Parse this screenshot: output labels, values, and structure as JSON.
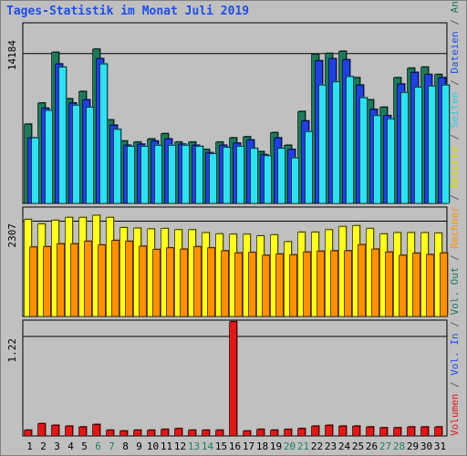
{
  "title": "Tages-Statistik im Monat Juli 2019",
  "chart_data": [
    {
      "type": "bar",
      "panel": "top",
      "ytick_label": "14184",
      "ytick_value": 14184,
      "ylim": [
        0,
        17100
      ],
      "categories": [
        "1",
        "2",
        "3",
        "4",
        "5",
        "6",
        "7",
        "8",
        "9",
        "10",
        "11",
        "12",
        "13",
        "14",
        "15",
        "16",
        "17",
        "18",
        "19",
        "20",
        "21",
        "22",
        "23",
        "24",
        "25",
        "26",
        "27",
        "28",
        "29",
        "30",
        "31"
      ],
      "weekend_days": [
        "6",
        "7",
        "13",
        "14",
        "20",
        "21",
        "27",
        "28"
      ],
      "series": [
        {
          "name": "Anfragen",
          "color": "#1e7a5a",
          "values": [
            7500,
            9500,
            14300,
            9900,
            10600,
            14600,
            7900,
            5900,
            5800,
            6100,
            6600,
            5800,
            5800,
            5100,
            5800,
            6200,
            6300,
            4900,
            6700,
            5500,
            8700,
            14100,
            14200,
            14400,
            11900,
            9800,
            9100,
            11900,
            12800,
            12900,
            12200
          ]
        },
        {
          "name": "Dateien",
          "color": "#2040e0",
          "values": [
            6200,
            9000,
            13200,
            9500,
            9800,
            13700,
            7400,
            5500,
            5600,
            5900,
            6100,
            5600,
            5500,
            4800,
            5500,
            5700,
            6000,
            4600,
            6200,
            5100,
            7800,
            13500,
            13700,
            13600,
            11200,
            8900,
            8300,
            11300,
            12400,
            12200,
            11900
          ]
        },
        {
          "name": "Seiten",
          "color": "#30e0f0",
          "values": [
            6200,
            8800,
            12900,
            9300,
            9100,
            13200,
            7000,
            5400,
            5400,
            5500,
            5500,
            5500,
            5400,
            4700,
            5300,
            5400,
            5200,
            4500,
            5200,
            4300,
            6800,
            11200,
            11500,
            12000,
            10000,
            8300,
            8000,
            10500,
            11000,
            11100,
            11200
          ]
        }
      ]
    },
    {
      "type": "bar",
      "panel": "middle",
      "ytick_label": "2307",
      "ytick_value": 2307,
      "ylim": [
        0,
        2650
      ],
      "categories": [
        "1",
        "2",
        "3",
        "4",
        "5",
        "6",
        "7",
        "8",
        "9",
        "10",
        "11",
        "12",
        "13",
        "14",
        "15",
        "16",
        "17",
        "18",
        "19",
        "20",
        "21",
        "22",
        "23",
        "24",
        "25",
        "26",
        "27",
        "28",
        "29",
        "30",
        "31"
      ],
      "series": [
        {
          "name": "Besuche",
          "color": "#ffff20",
          "values": [
            2350,
            2240,
            2330,
            2400,
            2400,
            2450,
            2400,
            2150,
            2140,
            2120,
            2130,
            2100,
            2100,
            2030,
            2000,
            1990,
            1990,
            1950,
            1980,
            1810,
            2040,
            2040,
            2100,
            2180,
            2200,
            2130,
            2000,
            2030,
            2030,
            2030,
            2020
          ]
        },
        {
          "name": "Rechner",
          "color": "#ff9000",
          "values": [
            1680,
            1690,
            1760,
            1760,
            1820,
            1730,
            1840,
            1820,
            1700,
            1620,
            1660,
            1630,
            1690,
            1660,
            1590,
            1540,
            1550,
            1480,
            1510,
            1490,
            1560,
            1580,
            1590,
            1590,
            1740,
            1630,
            1560,
            1480,
            1530,
            1500,
            1540
          ]
        }
      ]
    },
    {
      "type": "bar",
      "panel": "bottom",
      "ytick_label": "1.22",
      "ytick_value": 1.22,
      "ylim": [
        0,
        1.42
      ],
      "categories": [
        "1",
        "2",
        "3",
        "4",
        "5",
        "6",
        "7",
        "8",
        "9",
        "10",
        "11",
        "12",
        "13",
        "14",
        "15",
        "16",
        "17",
        "18",
        "19",
        "20",
        "21",
        "22",
        "23",
        "24",
        "25",
        "26",
        "27",
        "28",
        "29",
        "30",
        "31"
      ],
      "series": [
        {
          "name": "Volumen",
          "color": "#e01818",
          "values": [
            0.07,
            0.15,
            0.13,
            0.12,
            0.11,
            0.14,
            0.07,
            0.06,
            0.07,
            0.07,
            0.08,
            0.09,
            0.07,
            0.07,
            0.07,
            1.4,
            0.06,
            0.08,
            0.07,
            0.08,
            0.09,
            0.12,
            0.13,
            0.12,
            0.12,
            0.11,
            0.1,
            0.1,
            0.11,
            0.11,
            0.11
          ]
        }
      ]
    }
  ],
  "legend": [
    {
      "label": "Volumen",
      "color": "#e01818"
    },
    {
      "label": " / ",
      "color": "#606060"
    },
    {
      "label": "Vol. In",
      "color": "#1e4ee6"
    },
    {
      "label": " / ",
      "color": "#606060"
    },
    {
      "label": "Vol. Out",
      "color": "#1e7a5a"
    },
    {
      "label": " / ",
      "color": "#606060"
    },
    {
      "label": "Rechner",
      "color": "#ff9000"
    },
    {
      "label": " / ",
      "color": "#606060"
    },
    {
      "label": "Besuche",
      "color": "#dcdc00"
    },
    {
      "label": " / ",
      "color": "#606060"
    },
    {
      "label": "Seiten",
      "color": "#30c8e0"
    },
    {
      "label": " / ",
      "color": "#606060"
    },
    {
      "label": "Dateien",
      "color": "#1e4ee6"
    },
    {
      "label": " / ",
      "color": "#606060"
    },
    {
      "label": "Anfragen",
      "color": "#1e7a5a"
    }
  ],
  "colors": {
    "weekday_label": "#000000",
    "weekend_label": "#208060",
    "background": "#c0c0c0"
  }
}
